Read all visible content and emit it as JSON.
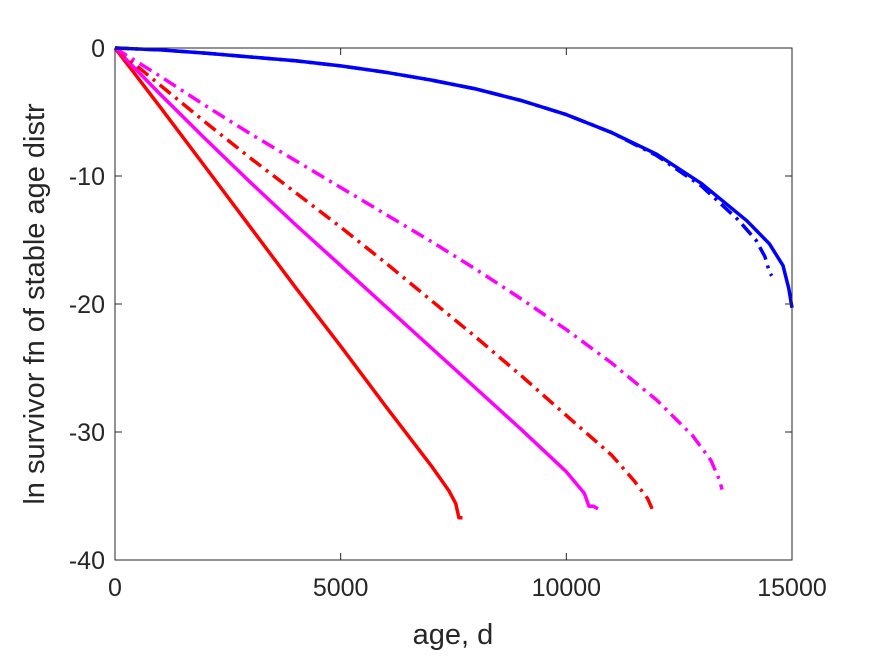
{
  "chart_data": {
    "type": "line",
    "title": "",
    "xlabel": "age, d",
    "ylabel": "ln survivor fn of stable age distr",
    "xlim": [
      0,
      15000
    ],
    "ylim": [
      -40,
      0
    ],
    "xticks": [
      0,
      5000,
      10000,
      15000
    ],
    "yticks": [
      0,
      -10,
      -20,
      -30,
      -40
    ],
    "xtick_labels": [
      "0",
      "5000",
      "10000",
      "15000"
    ],
    "ytick_labels": [
      "0",
      "-10",
      "-20",
      "-30",
      "-40"
    ],
    "grid": false,
    "series": [
      {
        "color": "#ff0000",
        "style": "solid",
        "points": [
          [
            0,
            0
          ],
          [
            1000,
            -4.6
          ],
          [
            2000,
            -9.3
          ],
          [
            3000,
            -14.0
          ],
          [
            4000,
            -18.7
          ],
          [
            5000,
            -23.3
          ],
          [
            6000,
            -28.0
          ],
          [
            7000,
            -32.6
          ],
          [
            7400,
            -34.6
          ],
          [
            7550,
            -35.6
          ],
          [
            7620,
            -36.7
          ],
          [
            7700,
            -36.7
          ]
        ]
      },
      {
        "color": "#ff00ff",
        "style": "solid",
        "points": [
          [
            0,
            0
          ],
          [
            1000,
            -3.6
          ],
          [
            2000,
            -7.1
          ],
          [
            3000,
            -10.5
          ],
          [
            4000,
            -13.8
          ],
          [
            5000,
            -17.0
          ],
          [
            6000,
            -20.2
          ],
          [
            7000,
            -23.4
          ],
          [
            8000,
            -26.6
          ],
          [
            9000,
            -29.8
          ],
          [
            10000,
            -33.1
          ],
          [
            10400,
            -34.8
          ],
          [
            10500,
            -35.8
          ],
          [
            10600,
            -35.8
          ],
          [
            10700,
            -36.0
          ]
        ]
      },
      {
        "color": "#ff0000",
        "style": "dashdot",
        "points": [
          [
            0,
            0
          ],
          [
            1000,
            -2.9
          ],
          [
            2000,
            -5.8
          ],
          [
            3000,
            -8.6
          ],
          [
            4000,
            -11.3
          ],
          [
            5000,
            -14.0
          ],
          [
            6000,
            -16.8
          ],
          [
            7000,
            -19.7
          ],
          [
            8000,
            -22.6
          ],
          [
            9000,
            -25.6
          ],
          [
            10000,
            -28.7
          ],
          [
            11000,
            -31.8
          ],
          [
            11500,
            -33.8
          ],
          [
            11800,
            -35.2
          ],
          [
            11900,
            -36.0
          ]
        ]
      },
      {
        "color": "#ff00ff",
        "style": "dashdot",
        "points": [
          [
            0,
            0
          ],
          [
            1000,
            -2.2
          ],
          [
            2000,
            -4.5
          ],
          [
            3000,
            -6.7
          ],
          [
            4000,
            -8.8
          ],
          [
            5000,
            -10.9
          ],
          [
            6000,
            -13.0
          ],
          [
            7000,
            -15.1
          ],
          [
            8000,
            -17.3
          ],
          [
            9000,
            -19.6
          ],
          [
            10000,
            -22.0
          ],
          [
            11000,
            -24.6
          ],
          [
            12000,
            -27.5
          ],
          [
            12800,
            -30.3
          ],
          [
            13200,
            -32.2
          ],
          [
            13400,
            -33.8
          ],
          [
            13450,
            -34.5
          ]
        ]
      },
      {
        "color": "#0000ff",
        "style": "dashdot",
        "points": [
          [
            0,
            0
          ],
          [
            1000,
            -0.15
          ],
          [
            2000,
            -0.4
          ],
          [
            3000,
            -0.7
          ],
          [
            4000,
            -1.0
          ],
          [
            5000,
            -1.4
          ],
          [
            6000,
            -1.9
          ],
          [
            7000,
            -2.5
          ],
          [
            8000,
            -3.2
          ],
          [
            9000,
            -4.1
          ],
          [
            10000,
            -5.2
          ],
          [
            11000,
            -6.6
          ],
          [
            12000,
            -8.4
          ],
          [
            13000,
            -10.8
          ],
          [
            13800,
            -13.4
          ],
          [
            14200,
            -15.0
          ],
          [
            14400,
            -16.3
          ],
          [
            14500,
            -17.5
          ],
          [
            14550,
            -17.8
          ]
        ]
      },
      {
        "color": "#0000ff",
        "style": "solid",
        "points": [
          [
            0,
            0
          ],
          [
            1000,
            -0.15
          ],
          [
            2000,
            -0.4
          ],
          [
            3000,
            -0.7
          ],
          [
            4000,
            -1.0
          ],
          [
            5000,
            -1.4
          ],
          [
            6000,
            -1.9
          ],
          [
            7000,
            -2.5
          ],
          [
            8000,
            -3.2
          ],
          [
            9000,
            -4.1
          ],
          [
            10000,
            -5.2
          ],
          [
            11000,
            -6.6
          ],
          [
            12000,
            -8.3
          ],
          [
            13000,
            -10.6
          ],
          [
            14000,
            -13.5
          ],
          [
            14500,
            -15.3
          ],
          [
            14800,
            -17.0
          ],
          [
            14930,
            -18.8
          ],
          [
            15000,
            -20.3
          ]
        ]
      }
    ]
  }
}
